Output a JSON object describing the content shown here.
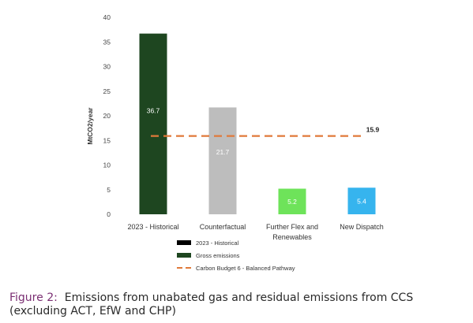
{
  "chart_data": {
    "type": "bar",
    "categories": [
      "2023 - Historical",
      "Counterfactual",
      "Further Flex and Renewables",
      "New Dispatch"
    ],
    "values": [
      36.7,
      21.7,
      5.2,
      5.4
    ],
    "value_labels": [
      "36.7",
      "21.7",
      "5.2",
      "5.4"
    ],
    "bar_colors": [
      "#1e4620",
      "#bdbdbd",
      "#6ee35a",
      "#36b4ee"
    ],
    "ylabel": "MtCO2/year",
    "ylim": [
      0,
      40
    ],
    "yticks": [
      0,
      5,
      10,
      15,
      20,
      25,
      30,
      35,
      40
    ],
    "grid": false,
    "reference_line": {
      "name": "Carbon Budget 6 - Balanced Pathway",
      "value": 15.9,
      "label": "15.9",
      "color": "#e0793a"
    },
    "legend_position": "bottom",
    "legend": [
      {
        "label": "2023 - Historical",
        "swatch": "bar",
        "color": "#000000"
      },
      {
        "label": "Gross emissions",
        "swatch": "bar",
        "color": "#1e4620"
      },
      {
        "label": "Carbon Budget 6 - Balanced Pathway",
        "swatch": "dash",
        "color": "#e0793a"
      }
    ]
  },
  "caption": {
    "lead": "Figure 2:",
    "text": "Emissions from unabated gas and residual emissions from CCS (excluding ACT, EfW and CHP)"
  }
}
